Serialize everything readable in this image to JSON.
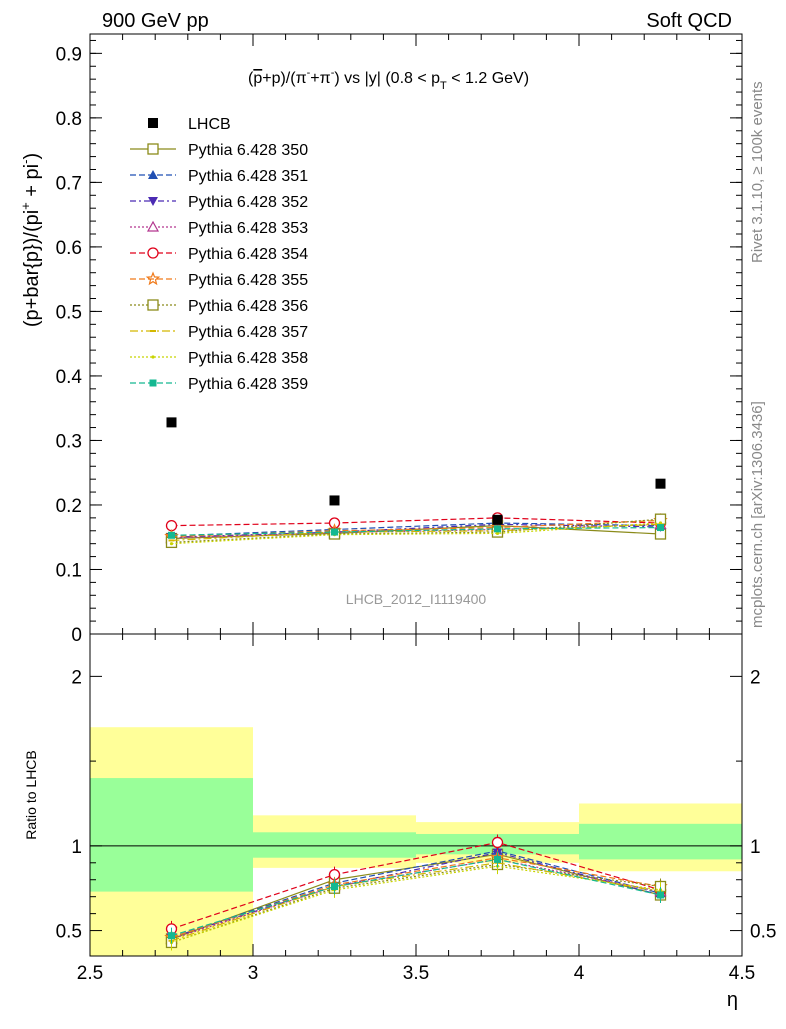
{
  "header": {
    "left": "900 GeV pp",
    "right": "Soft QCD"
  },
  "side_texts": {
    "rivet": "Rivet 3.1.10, ≥ 100k events",
    "mcplots": "mcplots.cern.ch [arXiv:1306.3436]"
  },
  "chart_data": [
    {
      "type": "scatter",
      "title": "(p̄+p)/(π⁻+π⁻) vs |y| (0.8 < p_T < 1.2 GeV)",
      "title_parts": {
        "a": "(",
        "pbar": "p",
        "b": "+p)/(π",
        "sup1": "-",
        "c": "+π",
        "sup2": "-",
        "d": ") vs |y| (0.8 < p",
        "sub": "T",
        "e": " < 1.2 GeV)"
      },
      "ylabel": "(p+bar{p})/(pi⁺ + pi⁻)",
      "ylabel_parts": {
        "main": "(p+bar{p})/(pi",
        "sup1": "+",
        "mid": " + pi",
        "sup2": "-",
        "end": ")"
      },
      "watermark": "LHCB_2012_I1119400",
      "xlim": [
        2.5,
        4.5
      ],
      "ylim": [
        0,
        0.93
      ],
      "yticks": [
        0,
        0.1,
        0.2,
        0.3,
        0.4,
        0.5,
        0.6,
        0.7,
        0.8,
        0.9
      ],
      "ytick_labels": [
        "0",
        "0.1",
        "0.2",
        "0.3",
        "0.4",
        "0.5",
        "0.6",
        "0.7",
        "0.8",
        "0.9"
      ],
      "x": [
        2.75,
        3.25,
        3.75,
        4.25
      ],
      "data": {
        "name": "LHCB",
        "values": [
          0.328,
          0.207,
          0.177,
          0.233
        ],
        "color": "#000000"
      },
      "series": [
        {
          "name": "Pythia 6.428 350",
          "color": "#8b8b1a",
          "dash": "",
          "marker": "square-open",
          "values": [
            0.148,
            0.156,
            0.168,
            0.155
          ]
        },
        {
          "name": "Pythia 6.428 351",
          "color": "#1f4fb3",
          "dash": "6,3",
          "marker": "triangle-up-filled",
          "values": [
            0.152,
            0.162,
            0.172,
            0.168
          ]
        },
        {
          "name": "Pythia 6.428 352",
          "color": "#4b2bb3",
          "dash": "6,3,2,3",
          "marker": "triangle-down-filled",
          "values": [
            0.15,
            0.158,
            0.17,
            0.166
          ]
        },
        {
          "name": "Pythia 6.428 353",
          "color": "#b3368f",
          "dash": "2,2",
          "marker": "triangle-up-open",
          "values": [
            0.149,
            0.157,
            0.162,
            0.17
          ]
        },
        {
          "name": "Pythia 6.428 354",
          "color": "#e0001a",
          "dash": "6,3",
          "marker": "circle-open",
          "values": [
            0.168,
            0.172,
            0.18,
            0.172
          ]
        },
        {
          "name": "Pythia 6.428 355",
          "color": "#f07a1a",
          "dash": "6,3",
          "marker": "star-open",
          "values": [
            0.151,
            0.16,
            0.165,
            0.176
          ]
        },
        {
          "name": "Pythia 6.428 356",
          "color": "#8b8b1a",
          "dash": "2,2",
          "marker": "square-open",
          "values": [
            0.142,
            0.155,
            0.158,
            0.178
          ]
        },
        {
          "name": "Pythia 6.428 357",
          "color": "#d4b800",
          "dash": "8,3,2,3",
          "marker": "dash",
          "values": [
            0.145,
            0.158,
            0.16,
            0.17
          ]
        },
        {
          "name": "Pythia 6.428 358",
          "color": "#c8d400",
          "dash": "2,2",
          "marker": "dot",
          "values": [
            0.14,
            0.154,
            0.156,
            0.172
          ]
        },
        {
          "name": "Pythia 6.428 359",
          "color": "#14b891",
          "dash": "6,3",
          "marker": "square-filled",
          "values": [
            0.153,
            0.158,
            0.163,
            0.165
          ]
        }
      ],
      "legend": "top-left"
    },
    {
      "type": "line",
      "ylabel": "Ratio to LHCB",
      "xlabel": "η",
      "xlim": [
        2.5,
        4.5
      ],
      "ylim": [
        0.35,
        2.25
      ],
      "xticks": [
        2.5,
        3,
        3.5,
        4,
        4.5
      ],
      "xtick_labels": [
        "2.5",
        "3",
        "3.5",
        "4",
        "4.5"
      ],
      "yticks": [
        0.5,
        1,
        2
      ],
      "ytick_labels": [
        "0.5",
        "1",
        "2"
      ],
      "bands": {
        "x_edges": [
          2.5,
          3.0,
          3.5,
          4.0,
          4.5
        ],
        "yellow": [
          [
            0.35,
            1.7
          ],
          [
            0.87,
            1.18
          ],
          [
            0.9,
            1.14
          ],
          [
            0.85,
            1.25
          ]
        ],
        "green": [
          [
            0.73,
            1.4
          ],
          [
            0.93,
            1.08
          ],
          [
            0.95,
            1.07
          ],
          [
            0.92,
            1.13
          ]
        ]
      },
      "x": [
        2.75,
        3.25,
        3.75,
        4.25
      ],
      "series_ratios": [
        [
          0.45,
          0.8,
          0.95,
          0.71
        ],
        [
          0.46,
          0.78,
          0.97,
          0.72
        ],
        [
          0.46,
          0.76,
          0.96,
          0.71
        ],
        [
          0.45,
          0.76,
          0.92,
          0.73
        ],
        [
          0.51,
          0.83,
          1.02,
          0.74
        ],
        [
          0.46,
          0.77,
          0.93,
          0.76
        ],
        [
          0.43,
          0.75,
          0.89,
          0.76
        ],
        [
          0.44,
          0.76,
          0.9,
          0.73
        ],
        [
          0.43,
          0.74,
          0.88,
          0.74
        ],
        [
          0.47,
          0.76,
          0.92,
          0.71
        ]
      ]
    }
  ]
}
